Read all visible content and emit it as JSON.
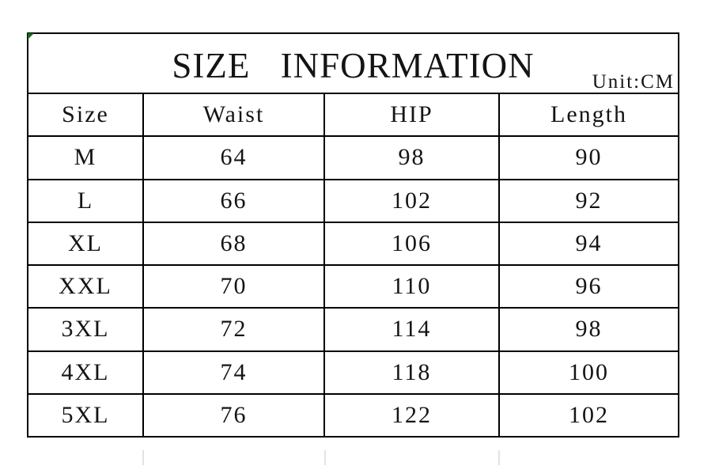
{
  "page": {
    "title": "SIZE INFORMATION",
    "unit_label": "Unit:CM"
  },
  "size_chart": {
    "headers": [
      "Size",
      "Waist",
      "HIP",
      "Length"
    ],
    "rows": [
      [
        "M",
        "64",
        "98",
        "90"
      ],
      [
        "L",
        "66",
        "102",
        "92"
      ],
      [
        "XL",
        "68",
        "106",
        "94"
      ],
      [
        "XXL",
        "70",
        "110",
        "96"
      ],
      [
        "3XL",
        "72",
        "114",
        "98"
      ],
      [
        "4XL",
        "74",
        "118",
        "100"
      ],
      [
        "5XL",
        "76",
        "122",
        "102"
      ]
    ]
  },
  "colors": {
    "border": "#000000",
    "text": "#141414",
    "corner_marker": "#166b16",
    "ghost_line": "#e3e3e3",
    "background": "#ffffff"
  }
}
